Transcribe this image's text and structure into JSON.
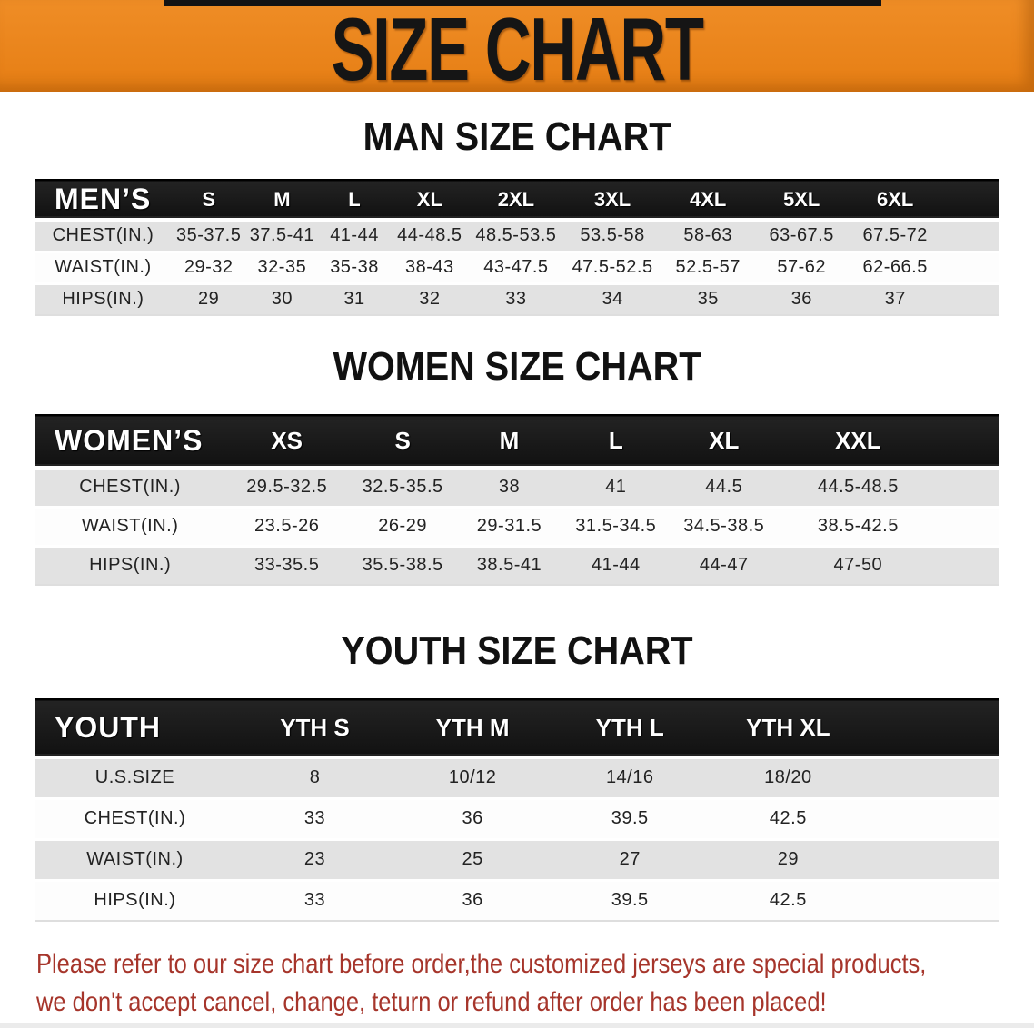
{
  "banner": {
    "title": "SIZE CHART",
    "bg_color": "#e8821c",
    "text_color": "#151515"
  },
  "colors": {
    "header_bar_black": "#161616",
    "stripe_gray": "#e2e2e2",
    "disclaimer_red": "#a6352b"
  },
  "tables": {
    "men": {
      "heading": "MAN SIZE CHART",
      "header_label": "MEN’S",
      "size_headers": [
        "S",
        "M",
        "L",
        "XL",
        "2XL",
        "3XL",
        "4XL",
        "5XL",
        "6XL"
      ],
      "rows": [
        {
          "label": "CHEST(IN.)",
          "values": [
            "35-37.5",
            "37.5-41",
            "41-44",
            "44-48.5",
            "48.5-53.5",
            "53.5-58",
            "58-63",
            "63-67.5",
            "67.5-72"
          ]
        },
        {
          "label": "WAIST(IN.)",
          "values": [
            "29-32",
            "32-35",
            "35-38",
            "38-43",
            "43-47.5",
            "47.5-52.5",
            "52.5-57",
            "57-62",
            "62-66.5"
          ]
        },
        {
          "label": "HIPS(IN.)",
          "values": [
            "29",
            "30",
            "31",
            "32",
            "33",
            "34",
            "35",
            "36",
            "37"
          ]
        }
      ]
    },
    "women": {
      "heading": "WOMEN SIZE CHART",
      "header_label": "WOMEN’S",
      "size_headers": [
        "XS",
        "S",
        "M",
        "L",
        "XL",
        "XXL"
      ],
      "rows": [
        {
          "label": "CHEST(IN.)",
          "values": [
            "29.5-32.5",
            "32.5-35.5",
            "38",
            "41",
            "44.5",
            "44.5-48.5"
          ]
        },
        {
          "label": "WAIST(IN.)",
          "values": [
            "23.5-26",
            "26-29",
            "29-31.5",
            "31.5-34.5",
            "34.5-38.5",
            "38.5-42.5"
          ]
        },
        {
          "label": "HIPS(IN.)",
          "values": [
            "33-35.5",
            "35.5-38.5",
            "38.5-41",
            "41-44",
            "44-47",
            "47-50"
          ]
        }
      ]
    },
    "youth": {
      "heading": "YOUTH SIZE CHART",
      "header_label": "YOUTH",
      "size_headers": [
        "YTH S",
        "YTH M",
        "YTH L",
        "YTH XL"
      ],
      "rows": [
        {
          "label": "U.S.SIZE",
          "values": [
            "8",
            "10/12",
            "14/16",
            "18/20"
          ]
        },
        {
          "label": "CHEST(IN.)",
          "values": [
            "33",
            "36",
            "39.5",
            "42.5"
          ]
        },
        {
          "label": "WAIST(IN.)",
          "values": [
            "23",
            "25",
            "27",
            "29"
          ]
        },
        {
          "label": "HIPS(IN.)",
          "values": [
            "33",
            "36",
            "39.5",
            "42.5"
          ]
        }
      ]
    }
  },
  "disclaimer": {
    "line1": "Please refer to our size chart before order,the customized jerseys are special products,",
    "line2": "we don't accept cancel, change, teturn or refund after order has been placed!"
  }
}
